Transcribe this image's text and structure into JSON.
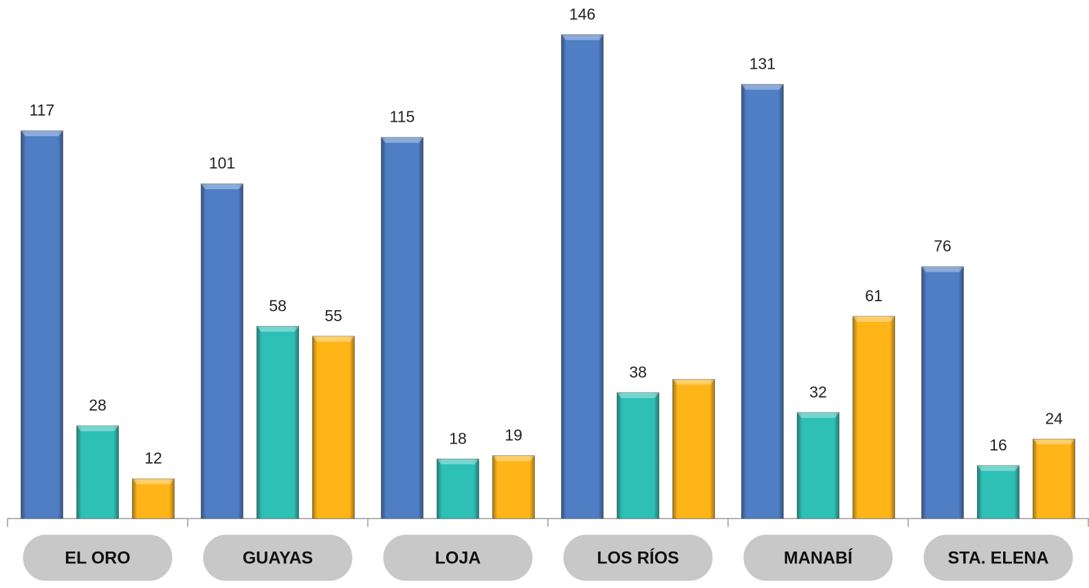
{
  "chart_data": {
    "type": "bar",
    "categories": [
      "EL ORO",
      "GUAYAS",
      "LOJA",
      "LOS RÍOS",
      "MANABÍ",
      "STA. ELENA"
    ],
    "series": [
      {
        "color": "#4f7ec4",
        "values": [
          117,
          101,
          115,
          146,
          131,
          76
        ]
      },
      {
        "color": "#2ebfb5",
        "values": [
          28,
          58,
          18,
          38,
          32,
          16
        ]
      },
      {
        "color": "#ffb518",
        "values": [
          12,
          55,
          19,
          42,
          61,
          24
        ],
        "value_labels": [
          "12",
          "55",
          "19",
          null,
          "61",
          "24"
        ]
      }
    ],
    "ylim": [
      0,
      156
    ]
  }
}
